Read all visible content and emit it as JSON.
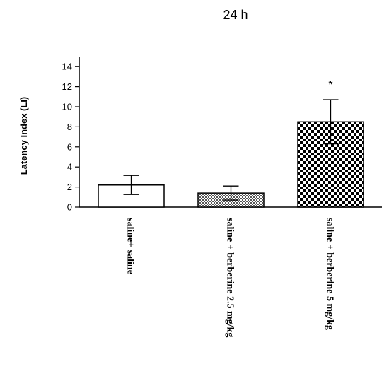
{
  "chart_data": {
    "type": "bar",
    "title": "24 h",
    "xlabel": "",
    "ylabel": "Latency Index (LI)",
    "ylim": [
      0,
      15
    ],
    "yticks": [
      0,
      2,
      4,
      6,
      8,
      10,
      12,
      14
    ],
    "categories": [
      "saline+ saline",
      "saline + berberine 2.5 mg/kg",
      "saline + berberine 5 mg/kg"
    ],
    "values": [
      2.2,
      1.4,
      8.5
    ],
    "error": [
      0.95,
      0.7,
      2.2
    ],
    "fills": [
      "white",
      "fine-checker",
      "coarse-checker"
    ],
    "annotations": [
      "",
      "",
      "*"
    ],
    "grid": false,
    "legend": "none"
  }
}
